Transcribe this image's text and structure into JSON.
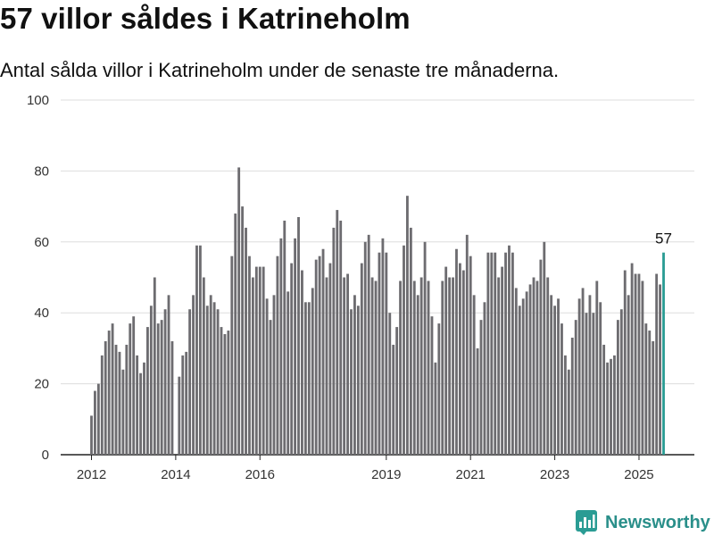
{
  "header": {
    "title": "57 villor såldes i Katrineholm",
    "subtitle": "Antal sålda villor i Katrineholm under de senaste tre månaderna."
  },
  "brand": {
    "name": "Newsworthy",
    "logo_icon": "newsworthy-logo-icon"
  },
  "colors": {
    "bar": "#6d6c70",
    "highlight": "#2a9c94",
    "grid": "#dddddd",
    "brand": "#2a8f8a"
  },
  "chart_data": {
    "type": "bar",
    "title": "57 villor såldes i Katrineholm",
    "subtitle": "Antal sålda villor i Katrineholm under de senaste tre månaderna.",
    "x_unit": "month (rolling three-month total)",
    "x_start": "2012-01",
    "ylim": [
      0,
      100
    ],
    "yticks": [
      0,
      20,
      40,
      60,
      80,
      100
    ],
    "xticks": [
      "2012",
      "2014",
      "2016",
      "2019",
      "2021",
      "2023",
      "2025"
    ],
    "grid": true,
    "highlight": {
      "label": "57",
      "value": 57,
      "index": "last"
    },
    "series": [
      {
        "values": [
          11,
          18,
          20,
          28,
          32,
          35,
          37,
          31,
          29,
          24,
          31,
          37,
          39,
          28,
          23,
          26,
          36,
          42,
          50,
          37,
          38,
          41,
          45,
          32,
          0,
          22,
          28,
          29,
          41,
          45,
          59,
          59,
          50,
          42,
          45,
          43,
          41,
          36,
          34,
          35,
          56,
          68,
          81,
          70,
          64,
          56,
          50,
          53,
          53,
          53,
          44,
          38,
          45,
          56,
          61,
          66,
          46,
          54,
          61,
          67,
          52,
          43,
          43,
          47,
          55,
          56,
          58,
          50,
          54,
          64,
          69,
          66,
          50,
          51,
          41,
          45,
          42,
          54,
          60,
          62,
          50,
          49,
          57,
          61,
          57,
          40,
          31,
          36,
          49,
          59,
          73,
          64,
          49,
          45,
          50,
          60,
          49,
          39,
          26,
          37,
          49,
          53,
          50,
          50,
          58,
          54,
          52,
          62,
          56,
          45,
          30,
          38,
          43,
          57,
          57,
          57,
          50,
          53,
          57,
          59,
          57,
          47,
          42,
          44,
          46,
          48,
          50,
          49,
          55,
          60,
          50,
          45,
          42,
          44,
          37,
          28,
          24,
          33,
          38,
          44,
          47,
          40,
          45,
          40,
          49,
          43,
          31,
          26,
          27,
          28,
          38,
          41,
          52,
          45,
          54,
          51,
          51,
          49,
          37,
          35,
          32,
          51,
          48,
          57
        ]
      }
    ]
  }
}
